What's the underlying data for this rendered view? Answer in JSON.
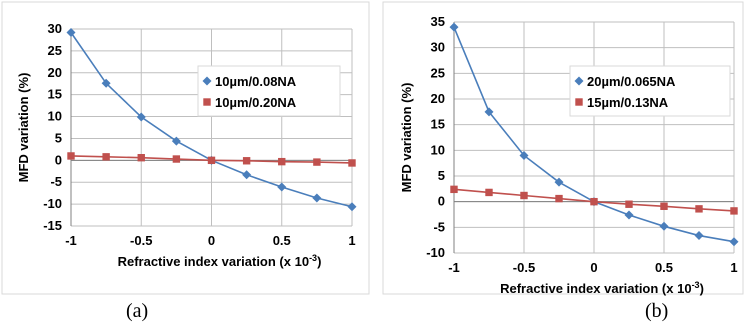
{
  "chart_data": [
    {
      "type": "line",
      "panel_label": "(a)",
      "xlabel": "Refractive index variation (x 10",
      "xlabel_sup": "-3",
      "xlabel_tail": ")",
      "ylabel": "MFD variation (%)",
      "x": [
        -1,
        -0.75,
        -0.5,
        -0.25,
        0,
        0.25,
        0.5,
        0.75,
        1
      ],
      "xticks": [
        -1,
        -0.5,
        0,
        0.5,
        1
      ],
      "xtick_labels": [
        "-1",
        "-0.5",
        "0",
        "0.5",
        "1"
      ],
      "yticks": [
        -15,
        -10,
        -5,
        0,
        5,
        10,
        15,
        20,
        25,
        30
      ],
      "ytick_labels": [
        "-15",
        "-10",
        "-5",
        "0",
        "5",
        "10",
        "15",
        "20",
        "25",
        "30"
      ],
      "xlim": [
        -1,
        1
      ],
      "ylim": [
        -15,
        30
      ],
      "grid": true,
      "legend_position": "upper-right",
      "series": [
        {
          "name": "10µm/0.08NA",
          "color": "#4a7ebb",
          "marker": "diamond",
          "values": [
            29.2,
            17.6,
            9.9,
            4.4,
            0,
            -3.3,
            -6.1,
            -8.6,
            -10.6
          ]
        },
        {
          "name": "10µm/0.20NA",
          "color": "#c0504d",
          "marker": "square",
          "values": [
            1.0,
            0.8,
            0.6,
            0.3,
            0,
            -0.1,
            -0.3,
            -0.4,
            -0.6
          ]
        }
      ]
    },
    {
      "type": "line",
      "panel_label": "(b)",
      "xlabel": "Refractive index variation (x 10",
      "xlabel_sup": "-3",
      "xlabel_tail": ")",
      "ylabel": "MFD variation (%)",
      "x": [
        -1,
        -0.75,
        -0.5,
        -0.25,
        0,
        0.25,
        0.5,
        0.75,
        1
      ],
      "xticks": [
        -1,
        -0.5,
        0,
        0.5,
        1
      ],
      "xtick_labels": [
        "-1",
        "-0.5",
        "0",
        "0.5",
        "1"
      ],
      "yticks": [
        -10,
        -5,
        0,
        5,
        10,
        15,
        20,
        25,
        30,
        35
      ],
      "ytick_labels": [
        "-10",
        "-5",
        "0",
        "5",
        "10",
        "15",
        "20",
        "25",
        "30",
        "35"
      ],
      "xlim": [
        -1,
        1
      ],
      "ylim": [
        -10,
        35
      ],
      "grid": true,
      "legend_position": "upper-right",
      "series": [
        {
          "name": "20µm/0.065NA",
          "color": "#4a7ebb",
          "marker": "diamond",
          "values": [
            34.0,
            17.5,
            9.0,
            3.8,
            0,
            -2.6,
            -4.8,
            -6.6,
            -7.8
          ]
        },
        {
          "name": "15µm/0.13NA",
          "color": "#c0504d",
          "marker": "square",
          "values": [
            2.4,
            1.8,
            1.2,
            0.6,
            0,
            -0.5,
            -0.9,
            -1.4,
            -1.8
          ]
        }
      ]
    }
  ]
}
